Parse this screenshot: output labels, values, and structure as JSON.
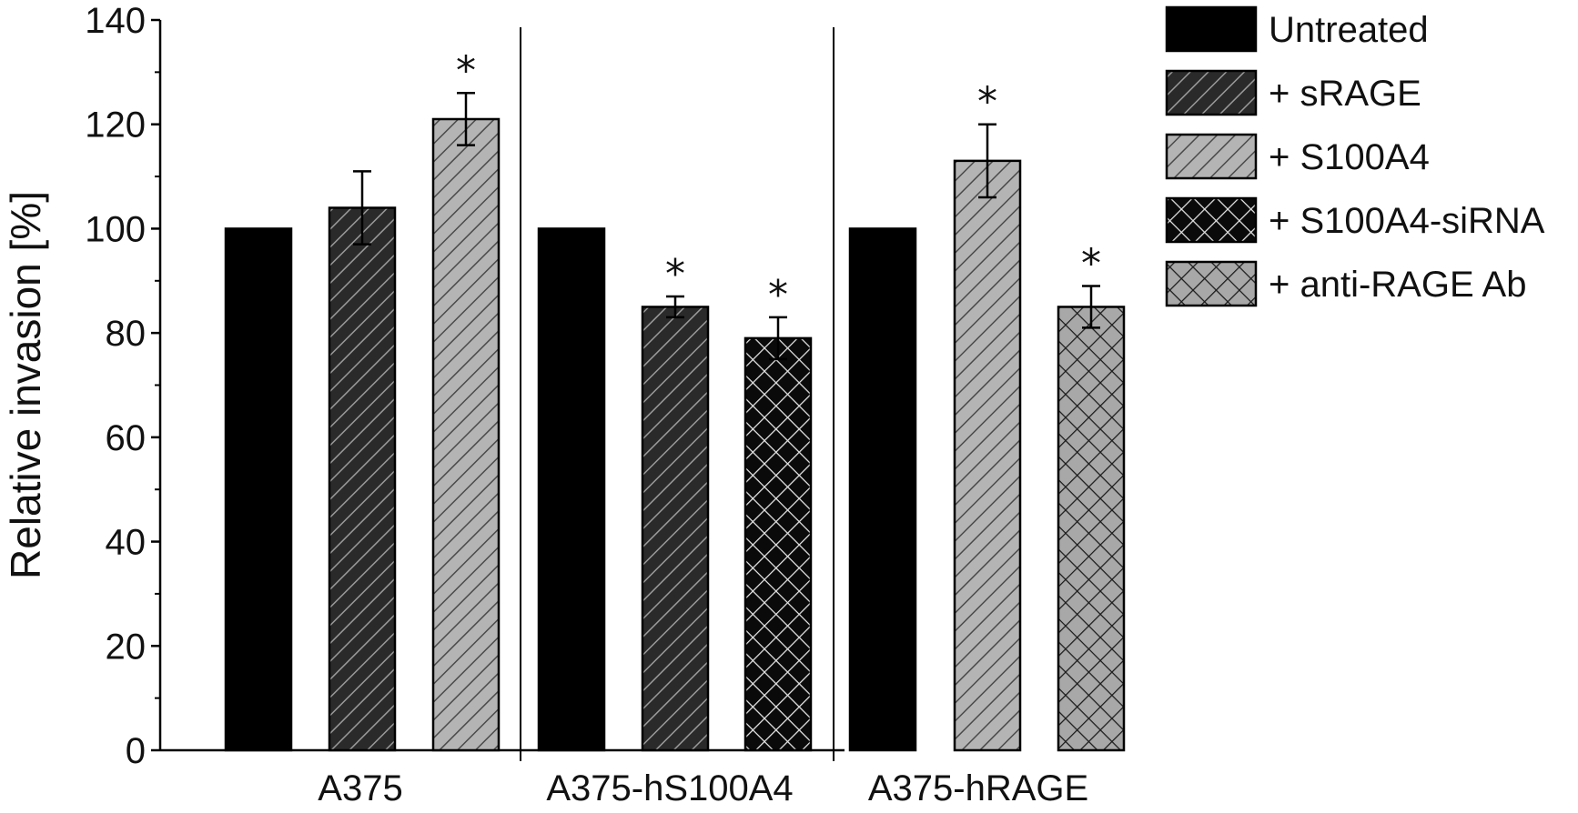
{
  "chart_data": {
    "type": "bar",
    "ylabel": "Relative invasion [%]",
    "ylim": [
      0,
      140
    ],
    "yticks": [
      0,
      20,
      40,
      60,
      80,
      100,
      120,
      140
    ],
    "grid": false,
    "legend_placement": "top-right",
    "groups": [
      {
        "label": "A375",
        "bars": [
          {
            "series": "Untreated",
            "value": 100,
            "error": null,
            "significant": false
          },
          {
            "series": "+ sRAGE",
            "value": 104,
            "error": 7,
            "significant": false
          },
          {
            "series": "+ S100A4",
            "value": 121,
            "error": 5,
            "significant": true
          }
        ]
      },
      {
        "label": "A375-hS100A4",
        "bars": [
          {
            "series": "Untreated",
            "value": 100,
            "error": null,
            "significant": false
          },
          {
            "series": "+ sRAGE",
            "value": 85,
            "error": 2,
            "significant": true
          },
          {
            "series": "+ S100A4-siRNA",
            "value": 79,
            "error": 4,
            "significant": true
          }
        ]
      },
      {
        "label": "A375-hRAGE",
        "bars": [
          {
            "series": "Untreated",
            "value": 100,
            "error": null,
            "significant": false
          },
          {
            "series": "+ S100A4",
            "value": 113,
            "error": 7,
            "significant": true
          },
          {
            "series": "+ anti-RAGE Ab",
            "value": 85,
            "error": 4,
            "significant": true
          }
        ]
      }
    ],
    "significance_marker": "*",
    "legend": [
      {
        "name": "Untreated",
        "pattern": "solid-black"
      },
      {
        "name": "+ sRAGE",
        "pattern": "diagonal-dark"
      },
      {
        "name": "+ S100A4",
        "pattern": "diagonal-light"
      },
      {
        "name": "+ S100A4-siRNA",
        "pattern": "crosshatch-dark"
      },
      {
        "name": "+ anti-RAGE Ab",
        "pattern": "crosshatch-light"
      }
    ],
    "colors": {
      "solid-black": "#000000",
      "diagonal-dark": "#2a2a2a",
      "diagonal-light": "#b4b4b4",
      "crosshatch-dark": "#0a0a0a",
      "crosshatch-light": "#a8a8a8"
    }
  }
}
